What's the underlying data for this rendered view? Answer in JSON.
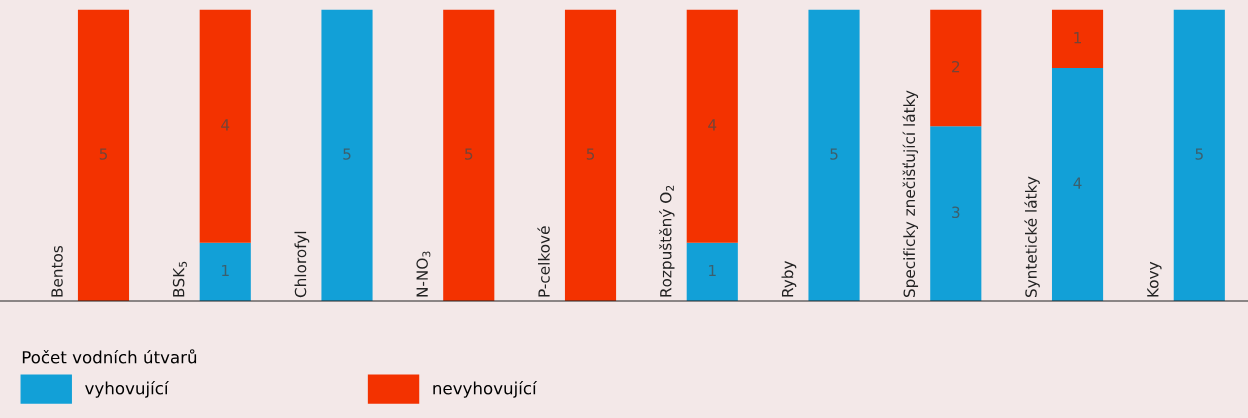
{
  "chart_data": {
    "type": "bar",
    "stacked": true,
    "legend_title": "Počet vodních útvarů",
    "legend": "bottom",
    "data_labels": true,
    "categories": [
      "Bentos",
      "BSK$_{5}$",
      "Chlorofyl",
      "N-NO$_{3}$",
      "P-celkové",
      "Rozpuštěný O$_{2}$",
      "Ryby",
      "Specificky znečišťující látky",
      "Syntetické látky",
      "Kovy"
    ],
    "series": [
      {
        "name": "vyhovující",
        "color": "#12a0d7",
        "values": [
          null,
          1,
          5,
          null,
          null,
          1,
          5,
          3,
          4,
          5
        ]
      },
      {
        "name": "nevyhovující",
        "color": "#f33200",
        "values": [
          5,
          4,
          null,
          5,
          5,
          4,
          null,
          2,
          1,
          null
        ]
      }
    ]
  }
}
